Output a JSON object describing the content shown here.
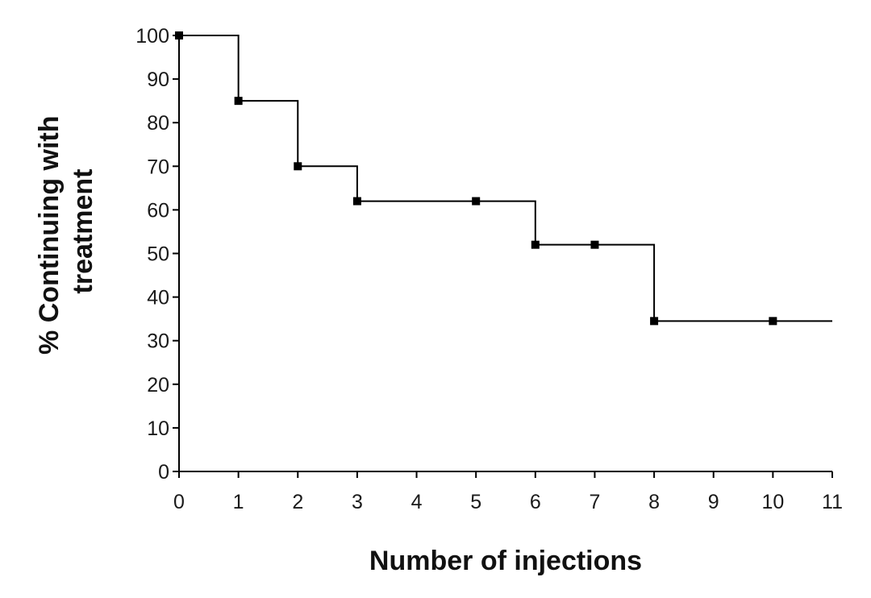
{
  "chart_data": {
    "type": "line",
    "step": true,
    "title": "",
    "xlabel": "Number of injections",
    "ylabel_lines": [
      "% Continuing with",
      "treatment"
    ],
    "xlim": [
      0,
      11
    ],
    "ylim": [
      0,
      100
    ],
    "x_ticks": [
      0,
      1,
      2,
      3,
      4,
      5,
      6,
      7,
      8,
      9,
      10,
      11
    ],
    "y_ticks": [
      0,
      10,
      20,
      30,
      40,
      50,
      60,
      70,
      80,
      90,
      100
    ],
    "grid": false,
    "legend": "none",
    "series": [
      {
        "x": [
          0,
          1,
          2,
          3,
          5,
          6,
          7,
          8,
          10
        ],
        "y": [
          100,
          85,
          70,
          62,
          62,
          52,
          52,
          34.5,
          34.5
        ],
        "line_end_x": 11,
        "color": "#000000",
        "marker": "square"
      }
    ]
  }
}
